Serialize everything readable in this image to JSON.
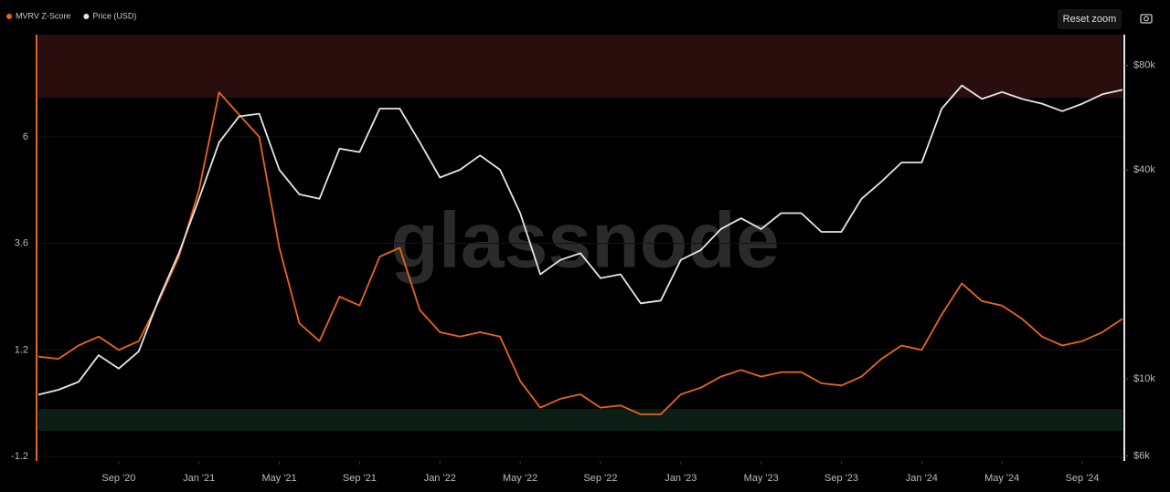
{
  "chart_data": {
    "type": "line",
    "watermark": "glassnode",
    "controls": {
      "reset": "Reset zoom"
    },
    "x": [
      "2020-05",
      "2020-06",
      "2020-07",
      "2020-08",
      "2020-09",
      "2020-10",
      "2020-11",
      "2020-12",
      "2021-01",
      "2021-02",
      "2021-03",
      "2021-04",
      "2021-05",
      "2021-06",
      "2021-07",
      "2021-08",
      "2021-09",
      "2021-10",
      "2021-11",
      "2021-12",
      "2022-01",
      "2022-02",
      "2022-03",
      "2022-04",
      "2022-05",
      "2022-06",
      "2022-07",
      "2022-08",
      "2022-09",
      "2022-10",
      "2022-11",
      "2022-12",
      "2023-01",
      "2023-02",
      "2023-03",
      "2023-04",
      "2023-05",
      "2023-06",
      "2023-07",
      "2023-08",
      "2023-09",
      "2023-10",
      "2023-11",
      "2023-12",
      "2024-01",
      "2024-02",
      "2024-03",
      "2024-04",
      "2024-05",
      "2024-06",
      "2024-07",
      "2024-08",
      "2024-09",
      "2024-10",
      "2024-11"
    ],
    "series": [
      {
        "name": "MVRV Z-Score",
        "color": "#e8661a",
        "axis": "y",
        "values": [
          1.05,
          1.0,
          1.3,
          1.5,
          1.2,
          1.4,
          2.3,
          3.3,
          4.8,
          7.0,
          6.5,
          6.0,
          3.5,
          1.8,
          1.4,
          2.4,
          2.2,
          3.3,
          3.5,
          2.1,
          1.6,
          1.5,
          1.6,
          1.5,
          0.5,
          -0.1,
          0.1,
          0.2,
          -0.1,
          -0.05,
          -0.25,
          -0.25,
          0.2,
          0.35,
          0.6,
          0.75,
          0.6,
          0.7,
          0.7,
          0.45,
          0.4,
          0.6,
          1.0,
          1.3,
          1.2,
          2.0,
          2.7,
          2.3,
          2.2,
          1.9,
          1.5,
          1.3,
          1.4,
          1.6,
          1.9
        ]
      },
      {
        "name": "Price (USD)",
        "color": "#e6e6e6",
        "axis": "y2",
        "values": [
          9000,
          9300,
          9800,
          11700,
          10700,
          12000,
          17000,
          23000,
          33000,
          48000,
          57000,
          58000,
          40000,
          34000,
          33000,
          46000,
          45000,
          60000,
          60000,
          48000,
          38000,
          40000,
          44000,
          40000,
          30000,
          20000,
          22000,
          23000,
          19500,
          20000,
          16500,
          16800,
          22000,
          23500,
          27000,
          29000,
          27000,
          30000,
          30000,
          26500,
          26500,
          33000,
          37000,
          42000,
          42000,
          60000,
          70000,
          64000,
          67000,
          64000,
          62000,
          59000,
          62000,
          66000,
          68000
        ]
      }
    ],
    "xlim": [
      "2020-05",
      "2024-11"
    ],
    "xticks": [
      {
        "value": "2020-09",
        "label": "Sep '20"
      },
      {
        "value": "2021-01",
        "label": "Jan '21"
      },
      {
        "value": "2021-05",
        "label": "May '21"
      },
      {
        "value": "2021-09",
        "label": "Sep '21"
      },
      {
        "value": "2022-01",
        "label": "Jan '22"
      },
      {
        "value": "2022-05",
        "label": "May '22"
      },
      {
        "value": "2022-09",
        "label": "Sep '22"
      },
      {
        "value": "2023-01",
        "label": "Jan '23"
      },
      {
        "value": "2023-05",
        "label": "May '23"
      },
      {
        "value": "2023-09",
        "label": "Sep '23"
      },
      {
        "value": "2024-01",
        "label": "Jan '24"
      },
      {
        "value": "2024-05",
        "label": "May '24"
      },
      {
        "value": "2024-09",
        "label": "Sep '24"
      }
    ],
    "ylim": [
      -1.3,
      8.3
    ],
    "yticks": [
      -1.2,
      1.2,
      3.6,
      6
    ],
    "y2lim": [
      5800,
      98000
    ],
    "y2log": true,
    "y2ticks": [
      {
        "value": 6000,
        "label": "$6k"
      },
      {
        "value": 10000,
        "label": "$10k"
      },
      {
        "value": 40000,
        "label": "$40k"
      },
      {
        "value": 80000,
        "label": "$80k"
      }
    ],
    "grid": true,
    "legend": "top-left"
  }
}
